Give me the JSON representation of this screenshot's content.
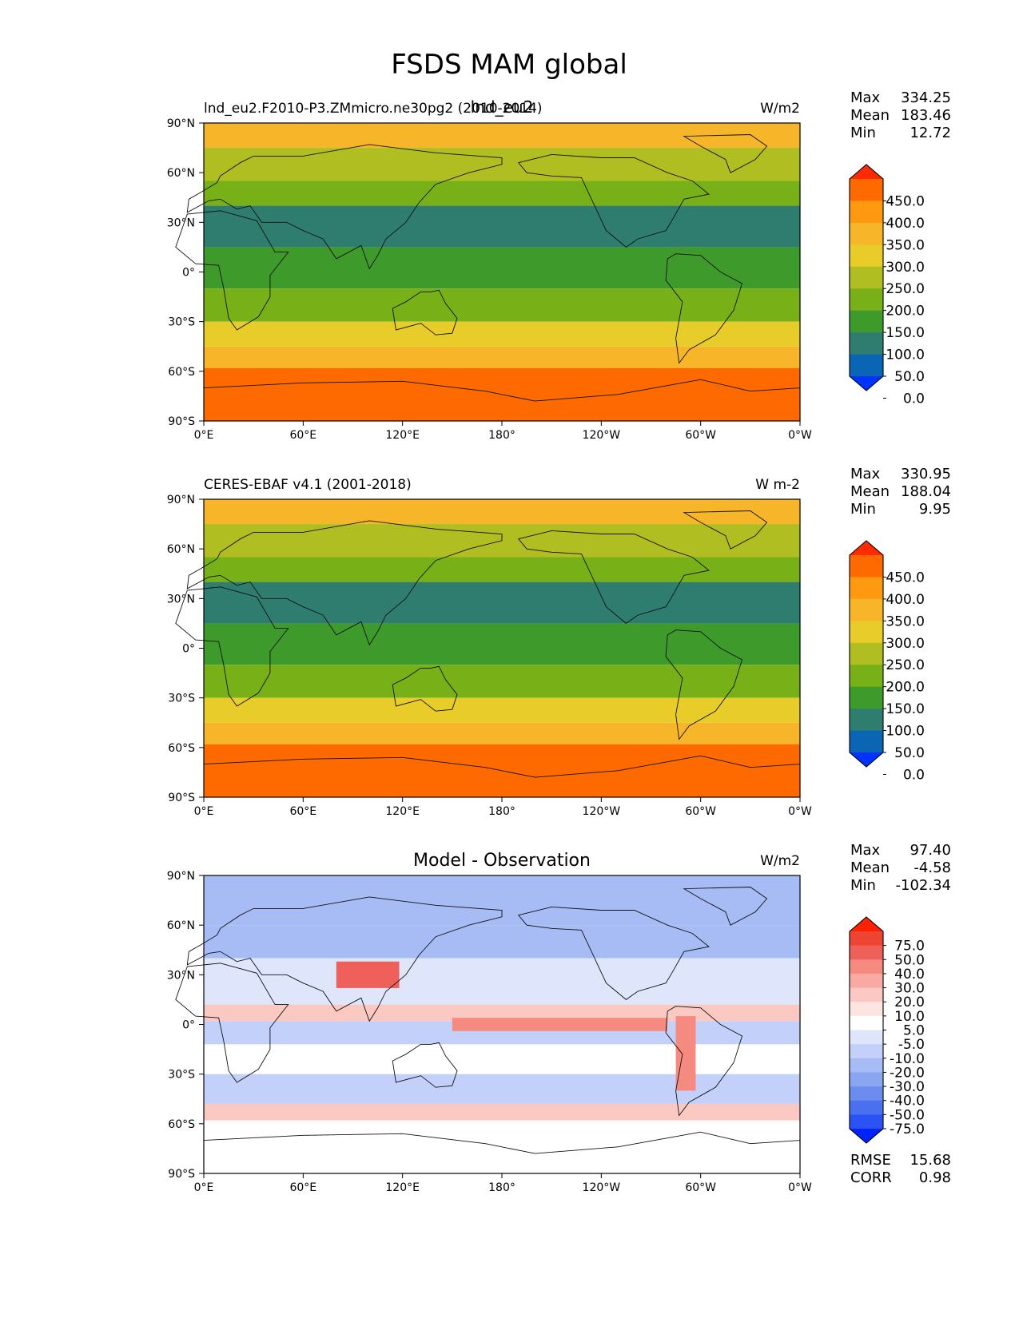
{
  "figure_title": "FSDS MAM global",
  "lat_ticks": [
    "90°N",
    "60°N",
    "30°N",
    "0°",
    "30°S",
    "60°S",
    "90°S"
  ],
  "lon_ticks": [
    "0°E",
    "60°E",
    "120°E",
    "180°",
    "120°W",
    "60°W",
    "0°W"
  ],
  "chart_data": [
    {
      "type": "heatmap",
      "panel": "test",
      "title": "lnd_eu2",
      "subtitle": "lnd_eu2.F2010-P3.ZMmicro.ne30pg2 (2010-2014)",
      "units": "W/m2",
      "stats": [
        {
          "label": "Max",
          "value": "334.25"
        },
        {
          "label": "Mean",
          "value": "183.46"
        },
        {
          "label": "Min",
          "value": "12.72"
        }
      ],
      "colorbar_levels": [
        "450.0",
        "400.0",
        "350.0",
        "300.0",
        "250.0",
        "200.0",
        "150.0",
        "100.0",
        "50.0",
        "0.0"
      ],
      "colorbar_colors": [
        "#ff2a00",
        "#ff6a00",
        "#ff9a10",
        "#f7b62a",
        "#e8cc2a",
        "#b0be22",
        "#78b018",
        "#3e9a2a",
        "#2e7d6e",
        "#0a66b4",
        "#0033ff"
      ],
      "x_range": [
        0,
        360
      ],
      "y_range": [
        -90,
        90
      ]
    },
    {
      "type": "heatmap",
      "panel": "reference",
      "title": "",
      "subtitle": "CERES-EBAF v4.1 (2001-2018)",
      "units": "W m-2",
      "stats": [
        {
          "label": "Max",
          "value": "330.95"
        },
        {
          "label": "Mean",
          "value": "188.04"
        },
        {
          "label": "Min",
          "value": "9.95"
        }
      ],
      "colorbar_levels": [
        "450.0",
        "400.0",
        "350.0",
        "300.0",
        "250.0",
        "200.0",
        "150.0",
        "100.0",
        "50.0",
        "0.0"
      ],
      "colorbar_colors": [
        "#ff2a00",
        "#ff6a00",
        "#ff9a10",
        "#f7b62a",
        "#e8cc2a",
        "#b0be22",
        "#78b018",
        "#3e9a2a",
        "#2e7d6e",
        "#0a66b4",
        "#0033ff"
      ],
      "x_range": [
        0,
        360
      ],
      "y_range": [
        -90,
        90
      ]
    },
    {
      "type": "heatmap",
      "panel": "difference",
      "title": "Model - Observation",
      "subtitle": "",
      "units": "W/m2",
      "stats": [
        {
          "label": "Max",
          "value": "97.40"
        },
        {
          "label": "Mean",
          "value": "-4.58"
        },
        {
          "label": "Min",
          "value": "-102.34"
        }
      ],
      "extra_stats": [
        {
          "label": "RMSE",
          "value": "15.68"
        },
        {
          "label": "CORR",
          "value": "0.98"
        }
      ],
      "colorbar_levels": [
        "75.0",
        "50.0",
        "40.0",
        "30.0",
        "20.0",
        "10.0",
        "5.0",
        "-5.0",
        "-10.0",
        "-20.0",
        "-30.0",
        "-40.0",
        "-50.0",
        "-75.0"
      ],
      "colorbar_colors": [
        "#ff2200",
        "#ee4433",
        "#f0605a",
        "#f58a80",
        "#f8aaa2",
        "#fbc8c2",
        "#fde4e0",
        "#ffffff",
        "#dfe6fb",
        "#c3d1fa",
        "#a7bcf5",
        "#8aa6f0",
        "#6b8cee",
        "#4a70f0",
        "#2a52f5",
        "#0022ff"
      ],
      "x_range": [
        0,
        360
      ],
      "y_range": [
        -90,
        90
      ]
    }
  ]
}
